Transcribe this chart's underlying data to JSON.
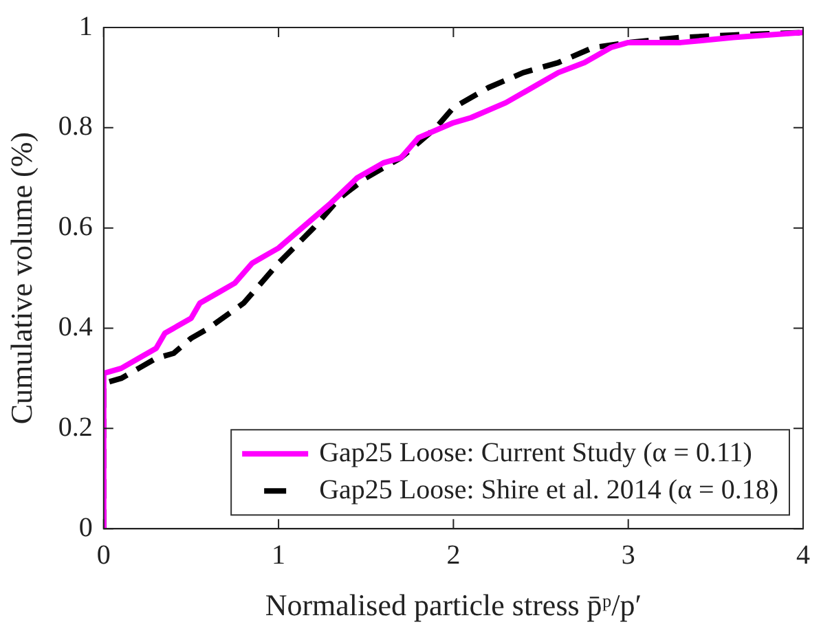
{
  "chart_data": {
    "type": "line",
    "xlabel": "Normalised particle stress p̄ᵖ/p′",
    "ylabel": "Cumulative volume (%)",
    "xlim": [
      0,
      4
    ],
    "xticks": [
      0,
      1,
      2,
      3,
      4
    ],
    "ylim": [
      0,
      1
    ],
    "yticks": [
      0,
      0.2,
      0.4,
      0.6,
      0.8,
      1
    ],
    "legend": "bottom right",
    "grid": false,
    "series": [
      {
        "name": "Gap25 Loose: Current Study (α = 0.11)",
        "color": "#ff00ff",
        "line_style": "solid",
        "x": [
          0,
          0,
          0.1,
          0.2,
          0.3,
          0.35,
          0.5,
          0.55,
          0.65,
          0.75,
          0.85,
          0.95,
          1.0,
          1.2,
          1.3,
          1.45,
          1.6,
          1.7,
          1.8,
          2.0,
          2.1,
          2.3,
          2.5,
          2.6,
          2.75,
          2.9,
          3.0,
          3.3,
          3.6,
          4.0
        ],
        "values": [
          0,
          0.31,
          0.32,
          0.34,
          0.36,
          0.39,
          0.42,
          0.45,
          0.47,
          0.49,
          0.53,
          0.55,
          0.56,
          0.62,
          0.65,
          0.7,
          0.73,
          0.74,
          0.78,
          0.81,
          0.82,
          0.85,
          0.89,
          0.91,
          0.93,
          0.96,
          0.97,
          0.97,
          0.98,
          0.99
        ]
      },
      {
        "name": "Gap25 Loose: Shire et al. 2014 (α = 0.18)",
        "color": "#000000",
        "line_style": "dashed",
        "x": [
          0,
          0,
          0.1,
          0.2,
          0.3,
          0.4,
          0.5,
          0.6,
          0.8,
          1.0,
          1.2,
          1.35,
          1.5,
          1.7,
          1.9,
          2.0,
          2.2,
          2.4,
          2.6,
          2.8,
          3.0,
          3.3,
          3.6,
          4.0
        ],
        "values": [
          0,
          0.29,
          0.3,
          0.32,
          0.34,
          0.35,
          0.38,
          0.4,
          0.45,
          0.53,
          0.6,
          0.66,
          0.7,
          0.74,
          0.8,
          0.84,
          0.88,
          0.91,
          0.93,
          0.96,
          0.97,
          0.98,
          0.985,
          0.99
        ]
      }
    ]
  }
}
